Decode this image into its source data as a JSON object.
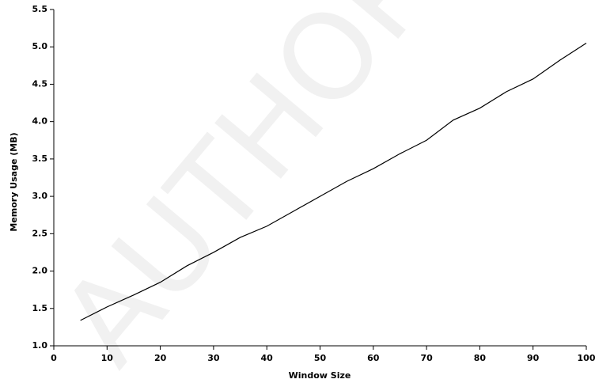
{
  "chart_data": {
    "type": "line",
    "watermark": "AUTHOR CO",
    "x_label": "Window Size",
    "y_label": "Memory Usage (MB)",
    "x": [
      5,
      10,
      15,
      20,
      25,
      30,
      35,
      40,
      45,
      50,
      55,
      60,
      65,
      70,
      75,
      80,
      85,
      90,
      95,
      100
    ],
    "series": [
      {
        "color": "#000000",
        "values": [
          1.34,
          1.52,
          1.68,
          1.85,
          2.07,
          2.25,
          2.45,
          2.6,
          2.8,
          3.0,
          3.2,
          3.37,
          3.57,
          3.75,
          4.02,
          4.18,
          4.4,
          4.57,
          4.82,
          5.05
        ]
      }
    ],
    "xlim": [
      0,
      100
    ],
    "xticks": [
      0,
      10,
      20,
      30,
      40,
      50,
      60,
      70,
      80,
      90,
      100
    ],
    "ylim": [
      1,
      5.5
    ],
    "yticks": [
      {
        "value": 1,
        "label": "1.0"
      },
      1.5,
      {
        "value": 2,
        "label": "2.0"
      },
      2.5,
      {
        "value": 3,
        "label": "3.0"
      },
      3.5,
      {
        "value": 4,
        "label": "4.0"
      },
      4.5,
      {
        "value": 5,
        "label": "5.0"
      },
      5.5
    ],
    "grid": false
  }
}
